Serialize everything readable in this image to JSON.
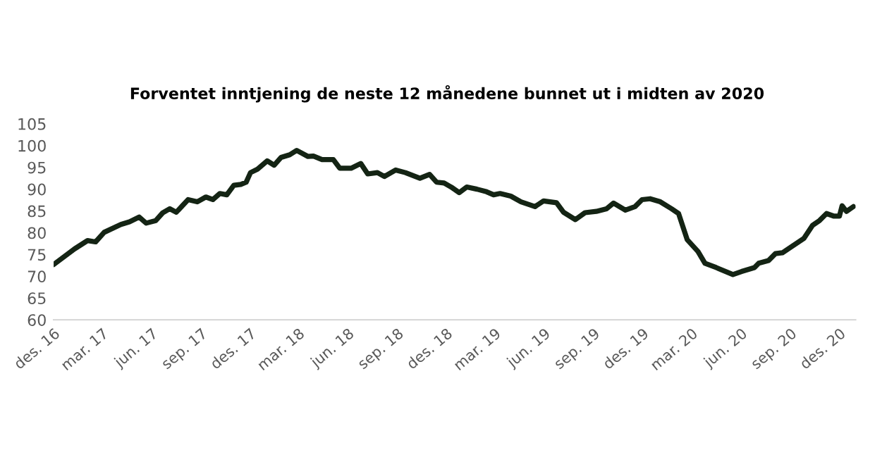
{
  "chart_data": {
    "type": "line",
    "title": "Forventet inntjening de neste 12 månedene bunnet ut i midten av 2020",
    "x": [
      "2016-12-01",
      "2017-01-09",
      "2017-02-02",
      "2017-02-17",
      "2017-03-05",
      "2017-04-05",
      "2017-04-21",
      "2017-05-09",
      "2017-05-22",
      "2017-06-09",
      "2017-06-22",
      "2017-07-05",
      "2017-07-17",
      "2017-08-08",
      "2017-08-25",
      "2017-09-10",
      "2017-09-23",
      "2017-10-06",
      "2017-10-19",
      "2017-11-01",
      "2017-11-14",
      "2017-11-24",
      "2017-12-02",
      "2017-12-15",
      "2018-01-02",
      "2018-01-15",
      "2018-01-28",
      "2018-02-13",
      "2018-02-26",
      "2018-03-19",
      "2018-03-29",
      "2018-04-14",
      "2018-05-05",
      "2018-05-17",
      "2018-06-07",
      "2018-06-25",
      "2018-07-08",
      "2018-07-26",
      "2018-08-08",
      "2018-08-29",
      "2018-09-16",
      "2018-10-13",
      "2018-10-31",
      "2018-11-13",
      "2018-11-27",
      "2018-12-10",
      "2018-12-25",
      "2019-01-08",
      "2019-01-27",
      "2019-02-14",
      "2019-02-27",
      "2019-03-11",
      "2019-03-31",
      "2019-04-19",
      "2019-05-15",
      "2019-05-31",
      "2019-06-24",
      "2019-07-07",
      "2019-07-29",
      "2019-08-16",
      "2019-09-06",
      "2019-09-25",
      "2019-10-08",
      "2019-10-30",
      "2019-11-17",
      "2019-11-30",
      "2019-12-15",
      "2020-01-03",
      "2020-01-24",
      "2020-02-06",
      "2020-02-22",
      "2020-03-13",
      "2020-03-26",
      "2020-04-16",
      "2020-05-17",
      "2020-06-02",
      "2020-06-26",
      "2020-07-04",
      "2020-07-22",
      "2020-08-04",
      "2020-08-17",
      "2020-09-03",
      "2020-09-26",
      "2020-10-12",
      "2020-10-25",
      "2020-11-07",
      "2020-11-21",
      "2020-12-01",
      "2020-12-06",
      "2020-12-14",
      "2020-12-27"
    ],
    "series": [
      {
        "color": "#142414",
        "values": [
          72.7,
          76.3,
          78.2,
          77.9,
          80.1,
          81.9,
          82.5,
          83.6,
          82.2,
          82.8,
          84.6,
          85.5,
          84.7,
          87.6,
          87.1,
          88.2,
          87.6,
          89.0,
          88.7,
          90.9,
          91.1,
          91.6,
          93.8,
          94.6,
          96.5,
          95.5,
          97.3,
          97.9,
          98.9,
          97.5,
          97.6,
          96.8,
          96.8,
          94.8,
          94.8,
          95.9,
          93.5,
          93.8,
          92.9,
          94.4,
          93.8,
          92.5,
          93.4,
          91.6,
          91.4,
          90.5,
          89.2,
          90.5,
          90.0,
          89.4,
          88.7,
          89.0,
          88.4,
          87.1,
          86.0,
          87.3,
          86.9,
          84.7,
          83.0,
          84.6,
          84.9,
          85.5,
          86.8,
          85.2,
          86.0,
          87.6,
          87.8,
          87.1,
          85.5,
          84.4,
          78.4,
          75.7,
          73.0,
          72.0,
          70.4,
          71.1,
          72.0,
          73.0,
          73.6,
          75.2,
          75.4,
          76.8,
          78.7,
          81.7,
          82.8,
          84.4,
          83.8,
          83.8,
          86.2,
          84.9,
          86.0
        ]
      }
    ],
    "xlim": [
      "2016-12-01",
      "2020-12-31"
    ],
    "xticks": [
      {
        "value": "2016-12-01",
        "label": "des. 16"
      },
      {
        "value": "2017-03-01",
        "label": "mar. 17"
      },
      {
        "value": "2017-06-01",
        "label": "jun. 17"
      },
      {
        "value": "2017-09-01",
        "label": "sep. 17"
      },
      {
        "value": "2017-12-01",
        "label": "des. 17"
      },
      {
        "value": "2018-03-01",
        "label": "mar. 18"
      },
      {
        "value": "2018-06-01",
        "label": "jun. 18"
      },
      {
        "value": "2018-09-01",
        "label": "sep. 18"
      },
      {
        "value": "2018-12-01",
        "label": "des. 18"
      },
      {
        "value": "2019-03-01",
        "label": "mar. 19"
      },
      {
        "value": "2019-06-01",
        "label": "jun. 19"
      },
      {
        "value": "2019-09-01",
        "label": "sep. 19"
      },
      {
        "value": "2019-12-01",
        "label": "des. 19"
      },
      {
        "value": "2020-03-01",
        "label": "mar. 20"
      },
      {
        "value": "2020-06-01",
        "label": "jun. 20"
      },
      {
        "value": "2020-09-01",
        "label": "sep. 20"
      },
      {
        "value": "2020-12-01",
        "label": "des. 20"
      }
    ],
    "ylim": [
      60,
      105
    ],
    "yticks": [
      60,
      65,
      70,
      75,
      80,
      85,
      90,
      95,
      100,
      105
    ],
    "grid": false
  }
}
